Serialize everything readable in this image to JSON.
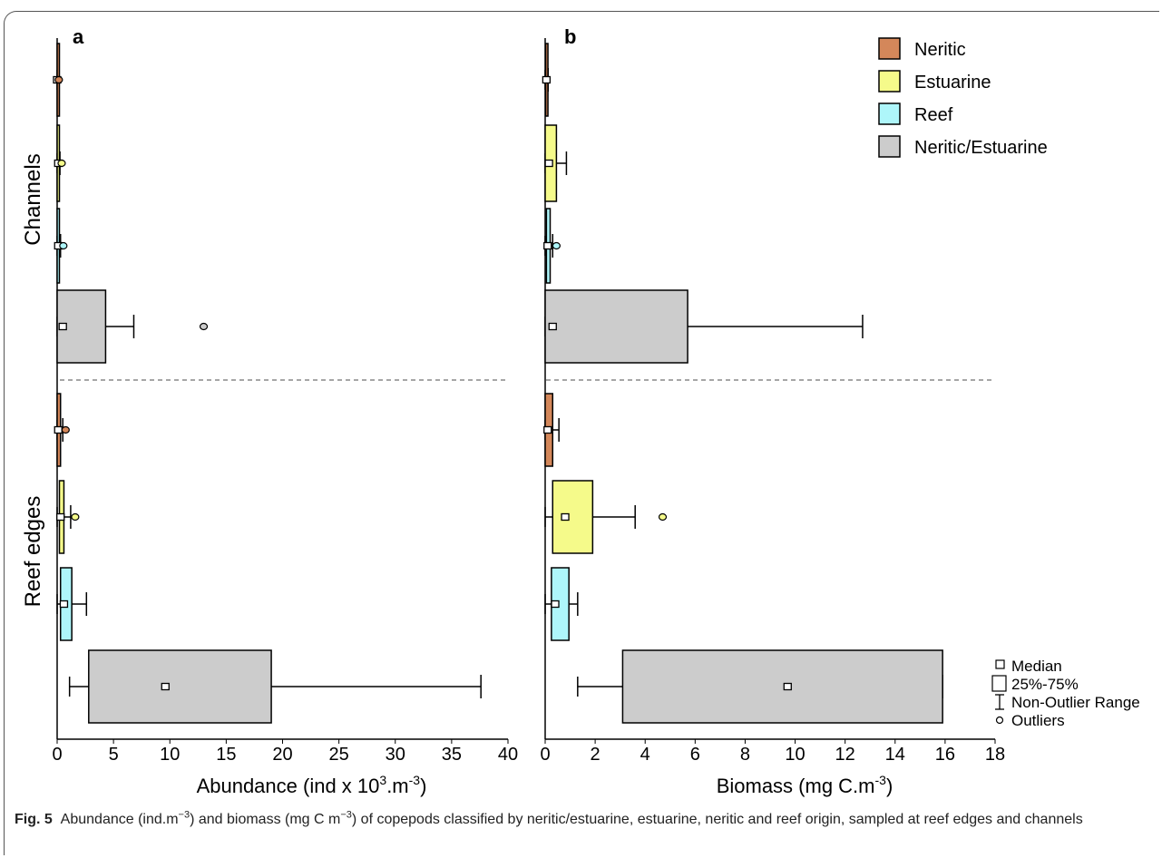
{
  "colors": {
    "Neritic": "#d4875a",
    "Estuarine": "#f5fa8a",
    "Reef": "#aef6fa",
    "Neritic/Estuarine": "#cccccc",
    "separator": "#a6a6a6"
  },
  "legend": {
    "entries": [
      "Neritic",
      "Estuarine",
      "Reef",
      "Neritic/Estuarine"
    ],
    "symbols": {
      "median": "Median",
      "box": "25%-75%",
      "whisker": "Non-Outlier Range",
      "outlier": "Outliers"
    }
  },
  "groups": [
    "Channels",
    "Reef edges"
  ],
  "chart_data": [
    {
      "type": "boxplot",
      "panel": "a",
      "xlabel_parts": [
        "Abundance (ind x 10",
        "3",
        ".m",
        "-3",
        ")"
      ],
      "xlim": [
        0,
        40
      ],
      "xticks": [
        0,
        5,
        10,
        15,
        20,
        25,
        30,
        35,
        40
      ],
      "boxes": [
        {
          "group": "Channels",
          "category": "Neritic",
          "whisker_low": 0,
          "q1": 0,
          "median": 0,
          "q3": 0.05,
          "whisker_high": 0.1,
          "outliers": [
            0.15
          ]
        },
        {
          "group": "Channels",
          "category": "Estuarine",
          "whisker_low": 0,
          "q1": 0,
          "median": 0.1,
          "q3": 0.15,
          "whisker_high": 0.25,
          "outliers": [
            0.4
          ]
        },
        {
          "group": "Channels",
          "category": "Reef",
          "whisker_low": 0,
          "q1": 0,
          "median": 0.1,
          "q3": 0.2,
          "whisker_high": 0.3,
          "outliers": [
            0.55
          ]
        },
        {
          "group": "Channels",
          "category": "Neritic/Estuarine",
          "whisker_low": 0,
          "q1": 0,
          "median": 0.5,
          "q3": 4.3,
          "whisker_high": 6.8,
          "outliers": [
            13.0
          ]
        },
        {
          "group": "Reef edges",
          "category": "Neritic",
          "whisker_low": 0,
          "q1": 0,
          "median": 0.1,
          "q3": 0.3,
          "whisker_high": 0.5,
          "outliers": [
            0.75
          ]
        },
        {
          "group": "Reef edges",
          "category": "Estuarine",
          "whisker_low": 0,
          "q1": 0.2,
          "median": 0.3,
          "q3": 0.6,
          "whisker_high": 1.2,
          "outliers": [
            1.6
          ]
        },
        {
          "group": "Reef edges",
          "category": "Reef",
          "whisker_low": 0,
          "q1": 0.3,
          "median": 0.6,
          "q3": 1.3,
          "whisker_high": 2.6,
          "outliers": []
        },
        {
          "group": "Reef edges",
          "category": "Neritic/Estuarine",
          "whisker_low": 1.1,
          "q1": 2.8,
          "median": 9.6,
          "q3": 19.0,
          "whisker_high": 37.6,
          "outliers": []
        }
      ]
    },
    {
      "type": "boxplot",
      "panel": "b",
      "xlabel_parts": [
        "Biomass (mg C.m",
        "-3",
        ")"
      ],
      "xlim": [
        0,
        18
      ],
      "xticks": [
        0,
        2,
        4,
        6,
        8,
        10,
        12,
        14,
        16,
        18
      ],
      "boxes": [
        {
          "group": "Channels",
          "category": "Neritic",
          "whisker_low": 0,
          "q1": 0.02,
          "median": 0.05,
          "q3": 0.08,
          "whisker_high": 0.12,
          "outliers": []
        },
        {
          "group": "Channels",
          "category": "Estuarine",
          "whisker_low": 0,
          "q1": 0,
          "median": 0.15,
          "q3": 0.45,
          "whisker_high": 0.85,
          "outliers": []
        },
        {
          "group": "Channels",
          "category": "Reef",
          "whisker_low": 0,
          "q1": 0.05,
          "median": 0.1,
          "q3": 0.2,
          "whisker_high": 0.3,
          "outliers": [
            0.45
          ]
        },
        {
          "group": "Channels",
          "category": "Neritic/Estuarine",
          "whisker_low": 0,
          "q1": 0,
          "median": 0.3,
          "q3": 5.7,
          "whisker_high": 12.7,
          "outliers": []
        },
        {
          "group": "Reef edges",
          "category": "Neritic",
          "whisker_low": 0,
          "q1": 0,
          "median": 0.1,
          "q3": 0.3,
          "whisker_high": 0.55,
          "outliers": []
        },
        {
          "group": "Reef edges",
          "category": "Estuarine",
          "whisker_low": 0,
          "q1": 0.3,
          "median": 0.8,
          "q3": 1.9,
          "whisker_high": 3.6,
          "outliers": [
            4.7
          ]
        },
        {
          "group": "Reef edges",
          "category": "Reef",
          "whisker_low": 0,
          "q1": 0.25,
          "median": 0.4,
          "q3": 0.95,
          "whisker_high": 1.3,
          "outliers": []
        },
        {
          "group": "Reef edges",
          "category": "Neritic/Estuarine",
          "whisker_low": 1.3,
          "q1": 3.1,
          "median": 9.7,
          "q3": 15.9,
          "whisker_high": 15.9,
          "outliers": []
        }
      ]
    }
  ],
  "caption": {
    "label": "Fig. 5",
    "text_parts": [
      "Abundance (ind.m",
      "−3",
      ") and biomass (mg C m",
      "−3",
      ") of copepods classified by neritic/estuarine, estuarine, neritic and reef origin, sampled at reef edges and channels"
    ]
  }
}
